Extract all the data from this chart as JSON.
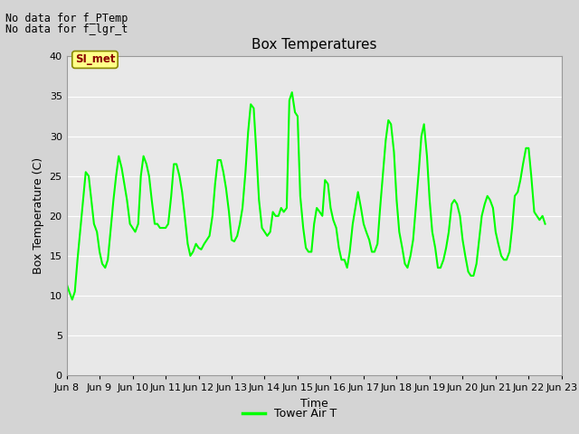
{
  "title": "Box Temperatures",
  "xlabel": "Time",
  "ylabel": "Box Temperature (C)",
  "ylim": [
    0,
    40
  ],
  "yticks": [
    0,
    5,
    10,
    15,
    20,
    25,
    30,
    35,
    40
  ],
  "line_color": "#00ff00",
  "line_width": 1.5,
  "fig_bg_color": "#d4d4d4",
  "plot_bg": "#e8e8e8",
  "legend_label": "Tower Air T",
  "no_data_text1": "No data for f_PTemp",
  "no_data_text2": "No data for f_lgr_t",
  "si_met_label": "SI_met",
  "x_tick_labels": [
    "Jun 8",
    "Jun 9",
    "Jun 10",
    "Jun 11",
    "Jun 12",
    "Jun 13",
    "Jun 14",
    "Jun 15",
    "Jun 16",
    "Jun 17",
    "Jun 18",
    "Jun 19",
    "Jun 20",
    "Jun 21",
    "Jun 22",
    "Jun 23"
  ],
  "time_values": [
    8,
    9,
    10,
    11,
    12,
    13,
    14,
    15,
    16,
    17,
    18,
    19,
    20,
    21,
    22,
    23
  ],
  "x_data": [
    8.0,
    8.08,
    8.17,
    8.25,
    8.33,
    8.42,
    8.5,
    8.58,
    8.67,
    8.75,
    8.83,
    8.92,
    9.0,
    9.08,
    9.17,
    9.25,
    9.33,
    9.42,
    9.5,
    9.58,
    9.67,
    9.75,
    9.83,
    9.92,
    10.0,
    10.08,
    10.17,
    10.25,
    10.33,
    10.42,
    10.5,
    10.58,
    10.67,
    10.75,
    10.83,
    10.92,
    11.0,
    11.08,
    11.17,
    11.25,
    11.33,
    11.42,
    11.5,
    11.58,
    11.67,
    11.75,
    11.83,
    11.92,
    12.0,
    12.08,
    12.17,
    12.25,
    12.33,
    12.42,
    12.5,
    12.58,
    12.67,
    12.75,
    12.83,
    12.92,
    13.0,
    13.08,
    13.17,
    13.25,
    13.33,
    13.42,
    13.5,
    13.58,
    13.67,
    13.75,
    13.83,
    13.92,
    14.0,
    14.08,
    14.17,
    14.25,
    14.33,
    14.42,
    14.5,
    14.58,
    14.67,
    14.75,
    14.83,
    14.92,
    15.0,
    15.08,
    15.17,
    15.25,
    15.33,
    15.42,
    15.5,
    15.58,
    15.67,
    15.75,
    15.83,
    15.92,
    16.0,
    16.08,
    16.17,
    16.25,
    16.33,
    16.42,
    16.5,
    16.58,
    16.67,
    16.75,
    16.83,
    16.92,
    17.0,
    17.08,
    17.17,
    17.25,
    17.33,
    17.42,
    17.5,
    17.58,
    17.67,
    17.75,
    17.83,
    17.92,
    18.0,
    18.08,
    18.17,
    18.25,
    18.33,
    18.42,
    18.5,
    18.58,
    18.67,
    18.75,
    18.83,
    18.92,
    19.0,
    19.08,
    19.17,
    19.25,
    19.33,
    19.42,
    19.5,
    19.58,
    19.67,
    19.75,
    19.83,
    19.92,
    20.0,
    20.08,
    20.17,
    20.25,
    20.33,
    20.42,
    20.5,
    20.58,
    20.67,
    20.75,
    20.83,
    20.92,
    21.0,
    21.08,
    21.17,
    21.25,
    21.33,
    21.42,
    21.5,
    21.58,
    21.67,
    21.75,
    21.83,
    21.92,
    22.0,
    22.08,
    22.17,
    22.25,
    22.33,
    22.42,
    22.5
  ],
  "y_data": [
    11.5,
    10.5,
    9.5,
    10.5,
    14.5,
    18.5,
    22.0,
    25.5,
    25.0,
    22.0,
    19.0,
    18.0,
    15.5,
    14.0,
    13.5,
    14.5,
    18.0,
    22.0,
    25.0,
    27.5,
    26.0,
    24.0,
    22.0,
    19.0,
    18.5,
    18.0,
    19.0,
    25.0,
    27.5,
    26.5,
    25.0,
    22.0,
    19.0,
    19.0,
    18.5,
    18.5,
    18.5,
    19.0,
    22.5,
    26.5,
    26.5,
    25.0,
    23.0,
    20.0,
    16.5,
    15.0,
    15.5,
    16.5,
    16.0,
    15.8,
    16.5,
    17.0,
    17.5,
    20.0,
    24.0,
    27.0,
    27.0,
    25.5,
    23.5,
    20.5,
    17.0,
    16.8,
    17.5,
    19.0,
    21.0,
    25.5,
    30.5,
    34.0,
    33.5,
    28.0,
    22.0,
    18.5,
    18.0,
    17.5,
    18.0,
    20.5,
    20.0,
    20.0,
    21.0,
    20.5,
    21.0,
    34.5,
    35.5,
    33.0,
    32.5,
    22.5,
    18.5,
    16.0,
    15.5,
    15.5,
    19.0,
    21.0,
    20.5,
    20.0,
    24.5,
    24.0,
    21.0,
    19.5,
    18.5,
    16.0,
    14.5,
    14.5,
    13.5,
    15.5,
    19.0,
    21.0,
    23.0,
    21.0,
    19.0,
    18.0,
    17.0,
    15.5,
    15.5,
    16.5,
    21.0,
    25.0,
    29.5,
    32.0,
    31.5,
    28.0,
    22.0,
    18.0,
    16.0,
    14.0,
    13.5,
    15.0,
    17.0,
    21.0,
    25.5,
    30.0,
    31.5,
    27.5,
    22.0,
    18.0,
    16.0,
    13.5,
    13.5,
    14.5,
    16.0,
    18.0,
    21.5,
    22.0,
    21.5,
    20.0,
    17.0,
    15.0,
    13.0,
    12.5,
    12.5,
    14.0,
    17.0,
    20.0,
    21.5,
    22.5,
    22.0,
    21.0,
    18.0,
    16.5,
    15.0,
    14.5,
    14.5,
    15.5,
    18.5,
    22.5,
    23.0,
    24.5,
    26.5,
    28.5,
    28.5,
    25.0,
    20.5,
    20.0,
    19.5,
    20.0,
    19.0
  ]
}
